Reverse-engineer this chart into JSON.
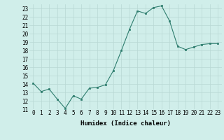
{
  "x": [
    0,
    1,
    2,
    3,
    4,
    5,
    6,
    7,
    8,
    9,
    10,
    11,
    12,
    13,
    14,
    15,
    16,
    17,
    18,
    19,
    20,
    21,
    22,
    23
  ],
  "y": [
    14.1,
    13.1,
    13.4,
    12.2,
    11.1,
    12.6,
    12.2,
    13.5,
    13.6,
    13.9,
    15.6,
    18.0,
    20.5,
    22.7,
    22.4,
    23.1,
    23.3,
    21.5,
    18.5,
    18.1,
    18.4,
    18.7,
    18.8,
    18.8
  ],
  "line_color": "#2e7d6e",
  "marker": "s",
  "marker_size": 2,
  "bg_color": "#d0eeea",
  "grid_color": "#b8d8d4",
  "xlabel": "Humidex (Indice chaleur)",
  "ylabel": "",
  "ylim": [
    11,
    23.5
  ],
  "xlim": [
    -0.5,
    23.5
  ],
  "yticks": [
    11,
    12,
    13,
    14,
    15,
    16,
    17,
    18,
    19,
    20,
    21,
    22,
    23
  ],
  "xticks": [
    0,
    1,
    2,
    3,
    4,
    5,
    6,
    7,
    8,
    9,
    10,
    11,
    12,
    13,
    14,
    15,
    16,
    17,
    18,
    19,
    20,
    21,
    22,
    23
  ],
  "label_fontsize": 6.5,
  "tick_fontsize": 5.5
}
